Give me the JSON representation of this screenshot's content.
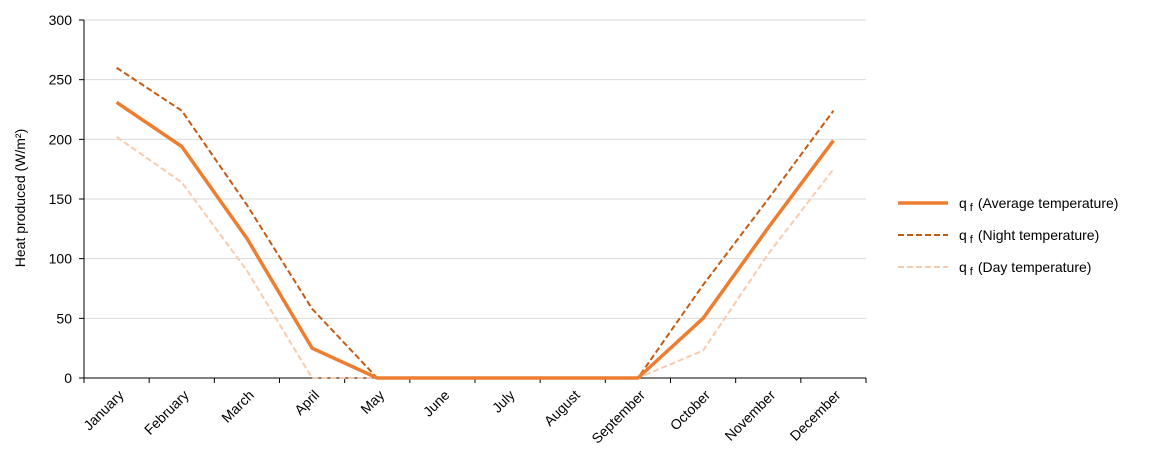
{
  "chart_data": {
    "type": "line",
    "categories": [
      "January",
      "February",
      "March",
      "April",
      "May",
      "June",
      "July",
      "August",
      "September",
      "October",
      "November",
      "December"
    ],
    "ylabel": "Heat produced (W/m²)",
    "xlabel": "",
    "title": "",
    "ylim": [
      0,
      300
    ],
    "yticks": [
      0,
      50,
      100,
      150,
      200,
      250,
      300
    ],
    "grid": "horizontal",
    "legend_position": "right",
    "series": [
      {
        "name": "q",
        "subscript": "f",
        "suffix": "(Average temperature)",
        "values": [
          231,
          194,
          117,
          25,
          0,
          0,
          0,
          0,
          0,
          50,
          126,
          199
        ],
        "color": "#ED7D31",
        "style": "solid"
      },
      {
        "name": "q",
        "subscript": "f",
        "suffix": "(Night temperature)",
        "values": [
          260,
          224,
          145,
          58,
          0,
          0,
          0,
          0,
          0,
          78,
          150,
          224
        ],
        "color": "#C55A11",
        "style": "dashed"
      },
      {
        "name": "q",
        "subscript": "f",
        "suffix": "(Day temperature)",
        "values": [
          202,
          164,
          90,
          0,
          0,
          0,
          0,
          0,
          0,
          23,
          104,
          175
        ],
        "color": "#F8CBAD",
        "style": "dashed"
      }
    ]
  }
}
